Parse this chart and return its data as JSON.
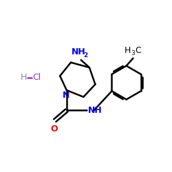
{
  "bg_color": "#ffffff",
  "bond_color": "#000000",
  "bond_lw": 1.8,
  "atom_N_color": "#0000ee",
  "atom_O_color": "#ff0000",
  "atom_HCl_H_color": "#888888",
  "atom_HCl_Cl_color": "#9933cc",
  "atom_C_color": "#000000",
  "font_size_main": 9,
  "font_size_sub": 6.5,
  "xlim": [
    0,
    10
  ],
  "ylim": [
    0,
    10
  ]
}
